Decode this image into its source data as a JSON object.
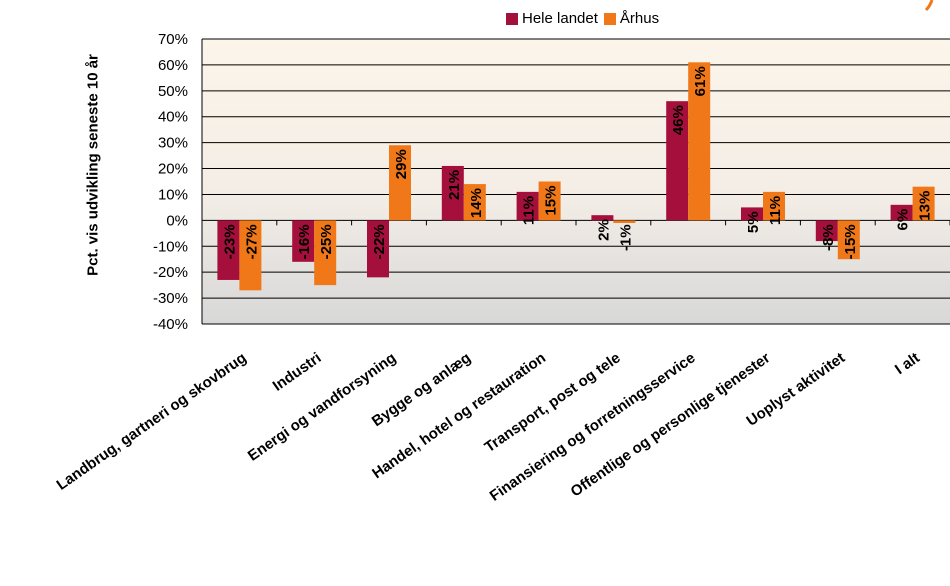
{
  "chart_data": {
    "type": "bar",
    "title": "",
    "xlabel": "",
    "ylabel": "Pct. vis udvikling seneste 10 år",
    "ylim": [
      -40,
      70
    ],
    "yticks": [
      70,
      60,
      50,
      40,
      30,
      20,
      10,
      0,
      -10,
      -20,
      -30,
      -40
    ],
    "ytick_labels": [
      "70%",
      "60%",
      "50%",
      "40%",
      "30%",
      "20%",
      "10%",
      "0%",
      "-10%",
      "-20%",
      "-30%",
      "-40%"
    ],
    "grid": true,
    "legend_position": "top",
    "categories": [
      "Landbrug, gartneri og skovbrug",
      "Industri",
      "Energi og vandforsyning",
      "Bygge og anlæg",
      "Handel, hotel og restauration",
      "Transport, post og tele",
      "Finansiering og forretningsservice",
      "Offentlige og personlige tjenester",
      "Uoplyst aktivitet",
      "I alt"
    ],
    "series": [
      {
        "name": "Hele landet",
        "color": "#a50f3c",
        "values": [
          -23,
          -16,
          -22,
          21,
          11,
          2,
          46,
          5,
          -8,
          6
        ],
        "labels": [
          "-23%",
          "-16%",
          "-22%",
          "21%",
          "11%",
          "2%",
          "46%",
          "5%",
          "-8%",
          "6%"
        ]
      },
      {
        "name": "Århus",
        "color": "#f07818",
        "values": [
          -27,
          -25,
          29,
          14,
          15,
          -1,
          61,
          11,
          -15,
          13
        ],
        "labels": [
          "-27%",
          "-25%",
          "29%",
          "14%",
          "15%",
          "-1%",
          "61%",
          "11%",
          "-15%",
          "13%"
        ]
      }
    ]
  }
}
